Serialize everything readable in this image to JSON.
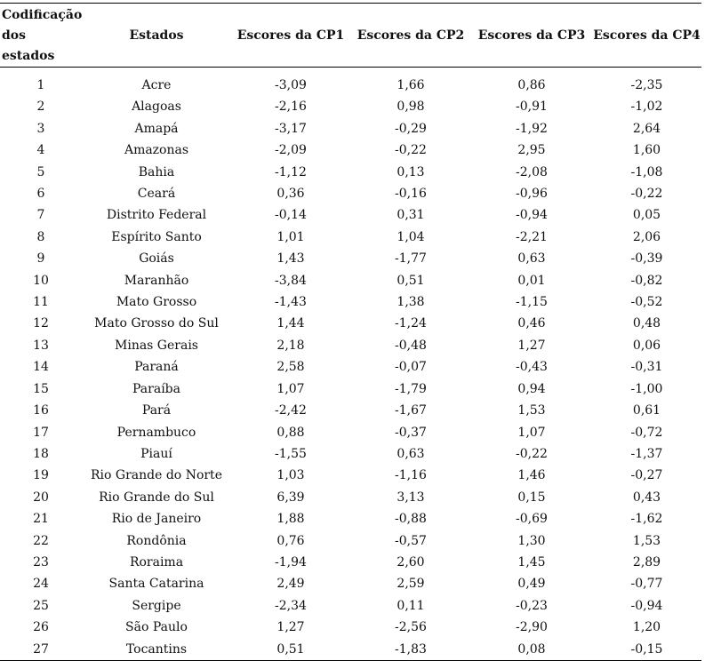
{
  "table": {
    "headers": [
      "Codificação dos estados",
      "Estados",
      "Escores da CP1",
      "Escores da CP2",
      "Escores da CP3",
      "Escores da CP4"
    ],
    "rows": [
      [
        "1",
        "Acre",
        "-3,09",
        "1,66",
        "0,86",
        "-2,35"
      ],
      [
        "2",
        "Alagoas",
        "-2,16",
        "0,98",
        "-0,91",
        "-1,02"
      ],
      [
        "3",
        "Amapá",
        "-3,17",
        "-0,29",
        "-1,92",
        "2,64"
      ],
      [
        "4",
        "Amazonas",
        "-2,09",
        "-0,22",
        "2,95",
        "1,60"
      ],
      [
        "5",
        "Bahia",
        "-1,12",
        "0,13",
        "-2,08",
        "-1,08"
      ],
      [
        "6",
        "Ceará",
        "0,36",
        "-0,16",
        "-0,96",
        "-0,22"
      ],
      [
        "7",
        "Distrito Federal",
        "-0,14",
        "0,31",
        "-0,94",
        "0,05"
      ],
      [
        "8",
        "Espírito Santo",
        "1,01",
        "1,04",
        "-2,21",
        "2,06"
      ],
      [
        "9",
        "Goiás",
        "1,43",
        "-1,77",
        "0,63",
        "-0,39"
      ],
      [
        "10",
        "Maranhão",
        "-3,84",
        "0,51",
        "0,01",
        "-0,82"
      ],
      [
        "11",
        "Mato Grosso",
        "-1,43",
        "1,38",
        "-1,15",
        "-0,52"
      ],
      [
        "12",
        "Mato Grosso do Sul",
        "1,44",
        "-1,24",
        "0,46",
        "0,48"
      ],
      [
        "13",
        "Minas Gerais",
        "2,18",
        "-0,48",
        "1,27",
        "0,06"
      ],
      [
        "14",
        "Paraná",
        "2,58",
        "-0,07",
        "-0,43",
        "-0,31"
      ],
      [
        "15",
        "Paraíba",
        "1,07",
        "-1,79",
        "0,94",
        "-1,00"
      ],
      [
        "16",
        "Pará",
        "-2,42",
        "-1,67",
        "1,53",
        "0,61"
      ],
      [
        "17",
        "Pernambuco",
        "0,88",
        "-0,37",
        "1,07",
        "-0,72"
      ],
      [
        "18",
        "Piauí",
        "-1,55",
        "0,63",
        "-0,22",
        "-1,37"
      ],
      [
        "19",
        "Rio Grande do Norte",
        "1,03",
        "-1,16",
        "1,46",
        "-0,27"
      ],
      [
        "20",
        "Rio Grande do Sul",
        "6,39",
        "3,13",
        "0,15",
        "0,43"
      ],
      [
        "21",
        "Rio de Janeiro",
        "1,88",
        "-0,88",
        "-0,69",
        "-1,62"
      ],
      [
        "22",
        "Rondônia",
        "0,76",
        "-0,57",
        "1,30",
        "1,53"
      ],
      [
        "23",
        "Roraima",
        "-1,94",
        "2,60",
        "1,45",
        "2,89"
      ],
      [
        "24",
        "Santa Catarina",
        "2,49",
        "2,59",
        "0,49",
        "-0,77"
      ],
      [
        "25",
        "Sergipe",
        "-2,34",
        "0,11",
        "-0,23",
        "-0,94"
      ],
      [
        "26",
        "São Paulo",
        "1,27",
        "-2,56",
        "-2,90",
        "1,20"
      ],
      [
        "27",
        "Tocantins",
        "0,51",
        "-1,83",
        "0,08",
        "-0,15"
      ]
    ]
  }
}
